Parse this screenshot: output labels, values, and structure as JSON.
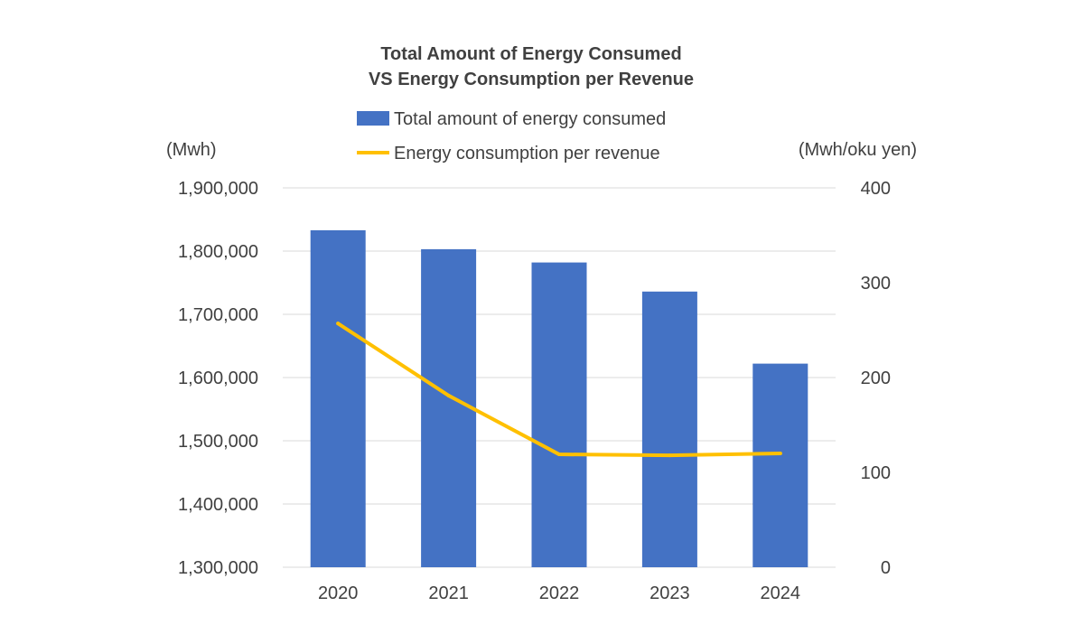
{
  "chart_data": {
    "type": "bar+line",
    "title": [
      "Total Amount of Energy Consumed",
      "VS Energy Consumption per Revenue"
    ],
    "categories": [
      "2020",
      "2021",
      "2022",
      "2023",
      "2024"
    ],
    "series": [
      {
        "name": "Total amount of energy consumed",
        "type": "bar",
        "axis": "left",
        "color": "#4472C4",
        "values": [
          1833000,
          1803000,
          1782000,
          1736000,
          1622000
        ]
      },
      {
        "name": "Energy consumption per revenue",
        "type": "line",
        "axis": "right",
        "color": "#FFC000",
        "values": [
          257,
          181,
          119,
          118,
          120
        ]
      }
    ],
    "y_left": {
      "label": "(Mwh)",
      "min": 1300000,
      "max": 1900000,
      "ticks": [
        1300000,
        1400000,
        1500000,
        1600000,
        1700000,
        1800000,
        1900000
      ],
      "tick_labels": [
        "1,300,000",
        "1,400,000",
        "1,500,000",
        "1,600,000",
        "1,700,000",
        "1,800,000",
        "1,900,000"
      ]
    },
    "y_right": {
      "label": "(Mwh/oku yen)",
      "min": 0,
      "max": 400,
      "ticks": [
        0,
        100,
        200,
        300,
        400
      ],
      "tick_labels": [
        "0",
        "100",
        "200",
        "300",
        "400"
      ]
    },
    "grid": true,
    "legend_position": "top"
  }
}
